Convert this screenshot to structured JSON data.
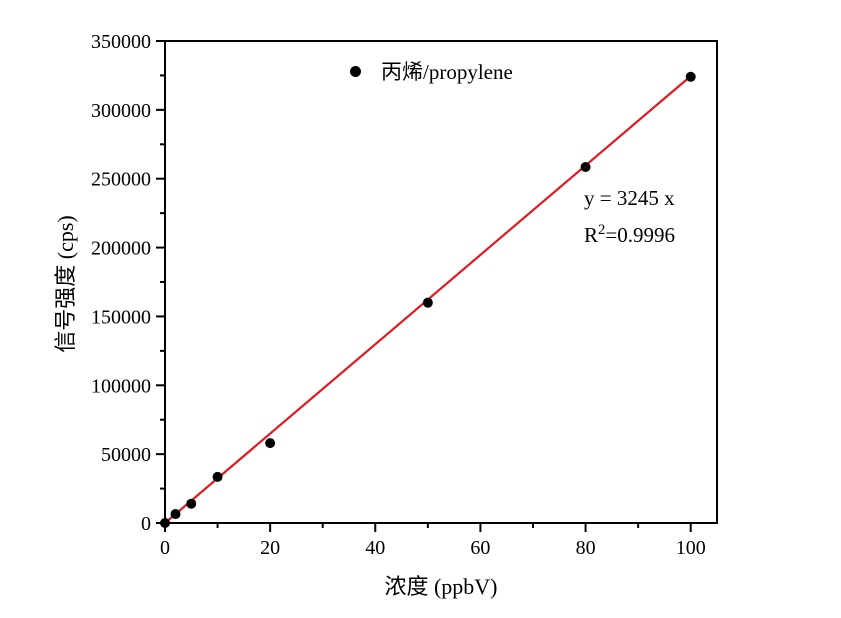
{
  "figure": {
    "background": "#ffffff",
    "border_color": "#000000"
  },
  "chart_data": {
    "type": "scatter",
    "title": "",
    "xlabel": "浓度 (ppbV)",
    "ylabel": "信号强度 (cps)",
    "xlim": [
      0,
      105
    ],
    "ylim": [
      0,
      350000
    ],
    "x_major_ticks": [
      0,
      20,
      40,
      60,
      80,
      100
    ],
    "x_minor_step": 10,
    "y_major_ticks": [
      0,
      50000,
      100000,
      150000,
      200000,
      250000,
      300000,
      350000
    ],
    "y_minor_step": 25000,
    "grid": false,
    "legend": {
      "position": "top-center",
      "entries": [
        {
          "label": "丙烯/propylene",
          "marker": "filled-circle",
          "color": "#000000"
        }
      ]
    },
    "series": [
      {
        "name": "丙烯/propylene",
        "type": "scatter",
        "marker": "filled-circle",
        "marker_color": "#000000",
        "marker_radius_px": 5,
        "points": [
          [
            0,
            0
          ],
          [
            2,
            6500
          ],
          [
            5,
            14000
          ],
          [
            10,
            33500
          ],
          [
            20,
            58000
          ],
          [
            50,
            160000
          ],
          [
            80,
            258500
          ],
          [
            100,
            324000
          ]
        ]
      }
    ],
    "fit_line": {
      "equation": "y = 3245 x",
      "slope": 3245,
      "intercept": 0,
      "r_squared": 0.9996,
      "color": "#e2191f",
      "x_range": [
        0,
        100
      ]
    },
    "annotation": {
      "line1": "y = 3245 x",
      "line2_base": "R",
      "line2_sup": "2",
      "line2_rest": "=0.9996"
    }
  }
}
